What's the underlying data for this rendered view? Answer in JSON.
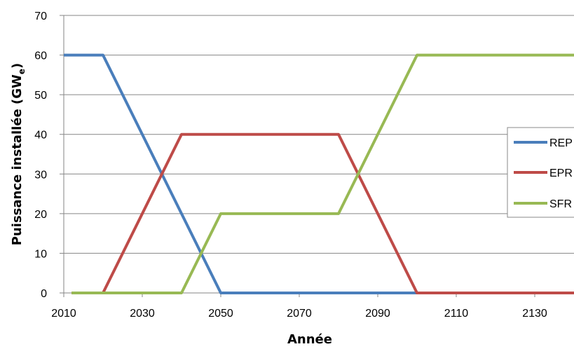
{
  "chart_data": {
    "type": "line",
    "xlabel": "Année",
    "ylabel_main": "Puissance installée (GW",
    "ylabel_sub": "e",
    "ylabel_close": ")",
    "xlim": [
      2010,
      2140
    ],
    "ylim": [
      0,
      70
    ],
    "x_ticks": [
      "2010",
      "2030",
      "2050",
      "2070",
      "2090",
      "2110",
      "2130"
    ],
    "y_ticks": [
      "0",
      "10",
      "20",
      "30",
      "40",
      "50",
      "60",
      "70"
    ],
    "grid": true,
    "legend_position": "right",
    "series": [
      {
        "name": "REP",
        "color": "#4a7ebb",
        "points": [
          [
            2010,
            60
          ],
          [
            2020,
            60
          ],
          [
            2050,
            0
          ],
          [
            2140,
            0
          ]
        ]
      },
      {
        "name": "EPR",
        "color": "#be4b48",
        "points": [
          [
            2012,
            0
          ],
          [
            2020,
            0
          ],
          [
            2040,
            40
          ],
          [
            2080,
            40
          ],
          [
            2100,
            0
          ],
          [
            2140,
            0
          ]
        ]
      },
      {
        "name": "SFR",
        "color": "#98b954",
        "points": [
          [
            2012,
            0
          ],
          [
            2040,
            0
          ],
          [
            2050,
            20
          ],
          [
            2080,
            20
          ],
          [
            2100,
            60
          ],
          [
            2140,
            60
          ]
        ]
      }
    ]
  }
}
